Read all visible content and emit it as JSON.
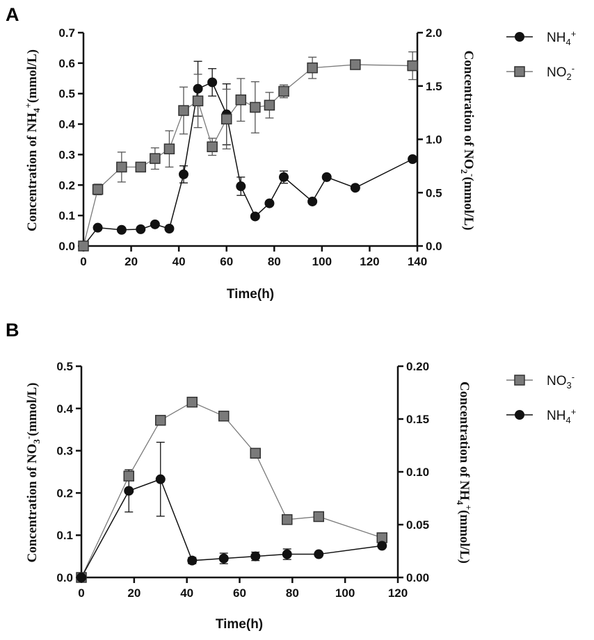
{
  "colors": {
    "nh4": "#111111",
    "no": "#7a7a7a",
    "no_stroke": "#333333",
    "axis": "#111111",
    "err": "#555555"
  },
  "chart_data": [
    {
      "panel": "A",
      "type": "line",
      "xlabel": "Time(h)",
      "ylabel_left": {
        "pre": "Concentration of NH",
        "sub": "4",
        "sup": "+",
        "post": "(mmol/L)"
      },
      "ylabel_right": {
        "pre": "Concentration of NO",
        "sub": "2",
        "sup": "-",
        "post": "(mmol/L)"
      },
      "xlim": [
        0,
        140
      ],
      "xticks": [
        "0",
        "20",
        "40",
        "60",
        "80",
        "100",
        "120",
        "140"
      ],
      "ylim_left": [
        0,
        0.7
      ],
      "yticks_left": [
        "0.0",
        "0.1",
        "0.2",
        "0.3",
        "0.4",
        "0.5",
        "0.6",
        "0.7"
      ],
      "ylim_right": [
        0,
        2.0
      ],
      "yticks_right": [
        "0.0",
        "0.5",
        "1.0",
        "1.5",
        "2.0"
      ],
      "series": [
        {
          "name": "NH4+",
          "axis": "left",
          "marker": "circle",
          "x": [
            0,
            6,
            16,
            24,
            30,
            36,
            42,
            48,
            54,
            60,
            66,
            72,
            78,
            84,
            96,
            102,
            114,
            138
          ],
          "y": [
            0.0,
            0.06,
            0.053,
            0.055,
            0.071,
            0.057,
            0.235,
            0.516,
            0.537,
            0.432,
            0.196,
            0.097,
            0.14,
            0.226,
            0.146,
            0.226,
            0.191,
            0.285
          ],
          "err": [
            0,
            0,
            0,
            0,
            0,
            0,
            0.028,
            0.09,
            0.045,
            0.1,
            0.03,
            0,
            0,
            0.02,
            0,
            0,
            0,
            0
          ]
        },
        {
          "name": "NO2-",
          "axis": "right",
          "marker": "square",
          "x": [
            0,
            6,
            16,
            24,
            30,
            36,
            42,
            48,
            54,
            60,
            66,
            72,
            78,
            84,
            96,
            114,
            138
          ],
          "y": [
            0.0,
            0.53,
            0.74,
            0.74,
            0.82,
            0.91,
            1.27,
            1.36,
            0.93,
            1.19,
            1.37,
            1.3,
            1.32,
            1.45,
            1.67,
            1.7,
            1.69
          ],
          "err": [
            0,
            0.05,
            0.14,
            0,
            0.1,
            0.17,
            0.22,
            0.25,
            0.08,
            0.28,
            0.2,
            0.24,
            0.12,
            0.06,
            0.1,
            0,
            0.13
          ]
        }
      ],
      "legend": [
        {
          "pre": "NH",
          "sub": "4",
          "sup": "+"
        },
        {
          "pre": "NO",
          "sub": "2",
          "sup": "-"
        }
      ]
    },
    {
      "panel": "B",
      "type": "line",
      "xlabel": "Time(h)",
      "ylabel_left": {
        "pre": "Concentration of NO",
        "sub": "3",
        "sup": "-",
        "post": "(mmol/L)"
      },
      "ylabel_right": {
        "pre": "Concentration of NH",
        "sub": "4",
        "sup": "+",
        "post": "(mmol/L)"
      },
      "xlim": [
        0,
        120
      ],
      "xticks": [
        "0",
        "20",
        "40",
        "60",
        "80",
        "100",
        "120"
      ],
      "ylim_left": [
        0,
        0.5
      ],
      "yticks_left": [
        "0.0",
        "0.1",
        "0.2",
        "0.3",
        "0.4",
        "0.5"
      ],
      "ylim_right": [
        0,
        0.2
      ],
      "yticks_right": [
        "0.00",
        "0.05",
        "0.10",
        "0.15",
        "0.20"
      ],
      "series": [
        {
          "name": "NO3-",
          "axis": "left",
          "marker": "square",
          "x": [
            0,
            18,
            30,
            42,
            54,
            66,
            78,
            90,
            114
          ],
          "y": [
            0.0,
            0.24,
            0.372,
            0.415,
            0.382,
            0.294,
            0.137,
            0.144,
            0.094
          ],
          "err": [
            0,
            0.01,
            0,
            0,
            0,
            0,
            0,
            0,
            0
          ]
        },
        {
          "name": "NH4+",
          "axis": "right",
          "marker": "circle",
          "x": [
            0,
            18,
            30,
            42,
            54,
            66,
            78,
            90,
            114
          ],
          "y": [
            0.0,
            0.082,
            0.093,
            0.016,
            0.018,
            0.02,
            0.022,
            0.022,
            0.03
          ],
          "err": [
            0,
            0.02,
            0.035,
            0.003,
            0.005,
            0.004,
            0.005,
            0,
            0
          ]
        }
      ],
      "legend": [
        {
          "pre": "NO",
          "sub": "3",
          "sup": "-"
        },
        {
          "pre": "NH",
          "sub": "4",
          "sup": "+"
        }
      ]
    }
  ]
}
